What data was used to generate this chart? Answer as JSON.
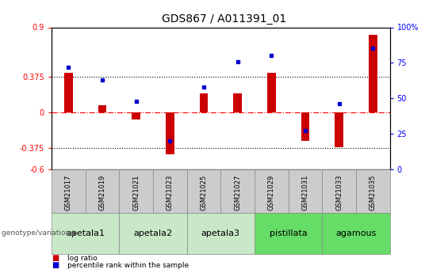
{
  "title": "GDS867 / A011391_01",
  "samples": [
    "GSM21017",
    "GSM21019",
    "GSM21021",
    "GSM21023",
    "GSM21025",
    "GSM21027",
    "GSM21029",
    "GSM21031",
    "GSM21033",
    "GSM21035"
  ],
  "log_ratio": [
    0.42,
    0.08,
    -0.07,
    -0.44,
    0.2,
    0.2,
    0.42,
    -0.3,
    -0.37,
    0.82
  ],
  "percentile_rank": [
    72,
    63,
    48,
    20,
    58,
    76,
    80,
    27,
    46,
    85
  ],
  "ylim_left": [
    -0.6,
    0.9
  ],
  "yticks_left": [
    0.9,
    0.375,
    0,
    -0.375,
    -0.6
  ],
  "yticks_right": [
    100,
    75,
    50,
    25,
    0
  ],
  "hline_dotted": [
    0.375,
    -0.375
  ],
  "groups": [
    {
      "label": "apetala1",
      "start": 0,
      "end": 2,
      "color": "#c8e8c8"
    },
    {
      "label": "apetala2",
      "start": 2,
      "end": 4,
      "color": "#c8e8c8"
    },
    {
      "label": "apetala3",
      "start": 4,
      "end": 6,
      "color": "#c8e8c8"
    },
    {
      "label": "pistillata",
      "start": 6,
      "end": 8,
      "color": "#66dd66"
    },
    {
      "label": "agamous",
      "start": 8,
      "end": 10,
      "color": "#66dd66"
    }
  ],
  "bar_color": "#cc0000",
  "dot_color": "#0000cc",
  "sample_box_color": "#cccccc",
  "bg_color": "#ffffff",
  "tick_label_fontsize": 7,
  "title_fontsize": 10,
  "group_label_fontsize": 8,
  "sample_label_fontsize": 6,
  "genotype_label": "genotype/variation",
  "legend_label_ratio": "log ratio",
  "legend_label_pct": "percentile rank within the sample"
}
